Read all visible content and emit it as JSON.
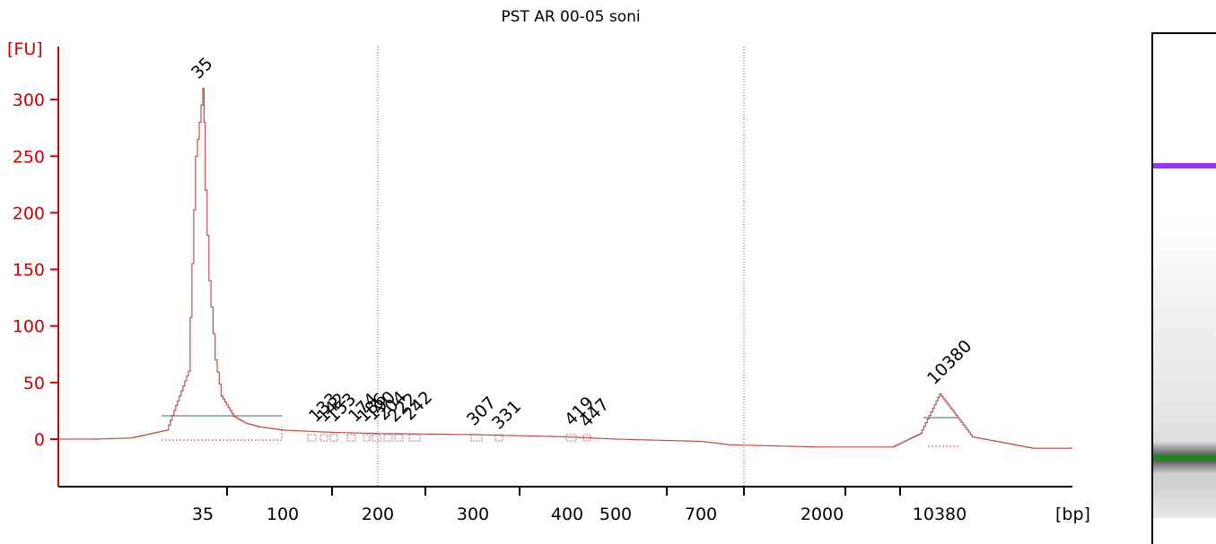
{
  "chart_data": {
    "type": "line",
    "title": "PST AR 00-05 soni",
    "ylabel": "[FU]",
    "xlabel": "[bp]",
    "ylim": [
      -40,
      340
    ],
    "yticks": [
      "300",
      "250",
      "200",
      "150",
      "100",
      "50",
      "0"
    ],
    "ytick_values": [
      300,
      250,
      200,
      150,
      100,
      50,
      0
    ],
    "xticks": [
      "35",
      "100",
      "200",
      "300",
      "400",
      "500",
      "700",
      "2000",
      "10380"
    ],
    "grid": "dotted vertical lines at 200 and between 700 and 2000",
    "line_color": "#c0504d",
    "series": [
      {
        "x": [
          "15",
          "20",
          "25",
          "30",
          "33",
          "34",
          "35",
          "36",
          "37",
          "40",
          "45",
          "50",
          "60",
          "70",
          "80",
          "100",
          "150",
          "200",
          "300",
          "400",
          "500",
          "700",
          "1000",
          "2000",
          "7000",
          "9000",
          "10380",
          "12000",
          "15000",
          "17000"
        ],
        "values": [
          0,
          0,
          1,
          8,
          60,
          250,
          310,
          280,
          220,
          140,
          70,
          38,
          20,
          14,
          11,
          8,
          6,
          5,
          4,
          2,
          0,
          -2,
          -5,
          -7,
          -7,
          5,
          40,
          2,
          -8,
          -8
        ]
      }
    ],
    "peaks": {
      "markers": [
        {
          "label": "35",
          "color": "#1b8a1b"
        },
        {
          "label": "10380",
          "color": "#9b30ff"
        }
      ],
      "labels": [
        "133",
        "142",
        "153",
        "174",
        "186",
        "190",
        "204",
        "222",
        "242",
        "307",
        "331",
        "419",
        "447"
      ]
    }
  },
  "gel": {
    "upper_marker_color": "#9b30ff",
    "lower_marker_color": "#1b8a1b"
  }
}
